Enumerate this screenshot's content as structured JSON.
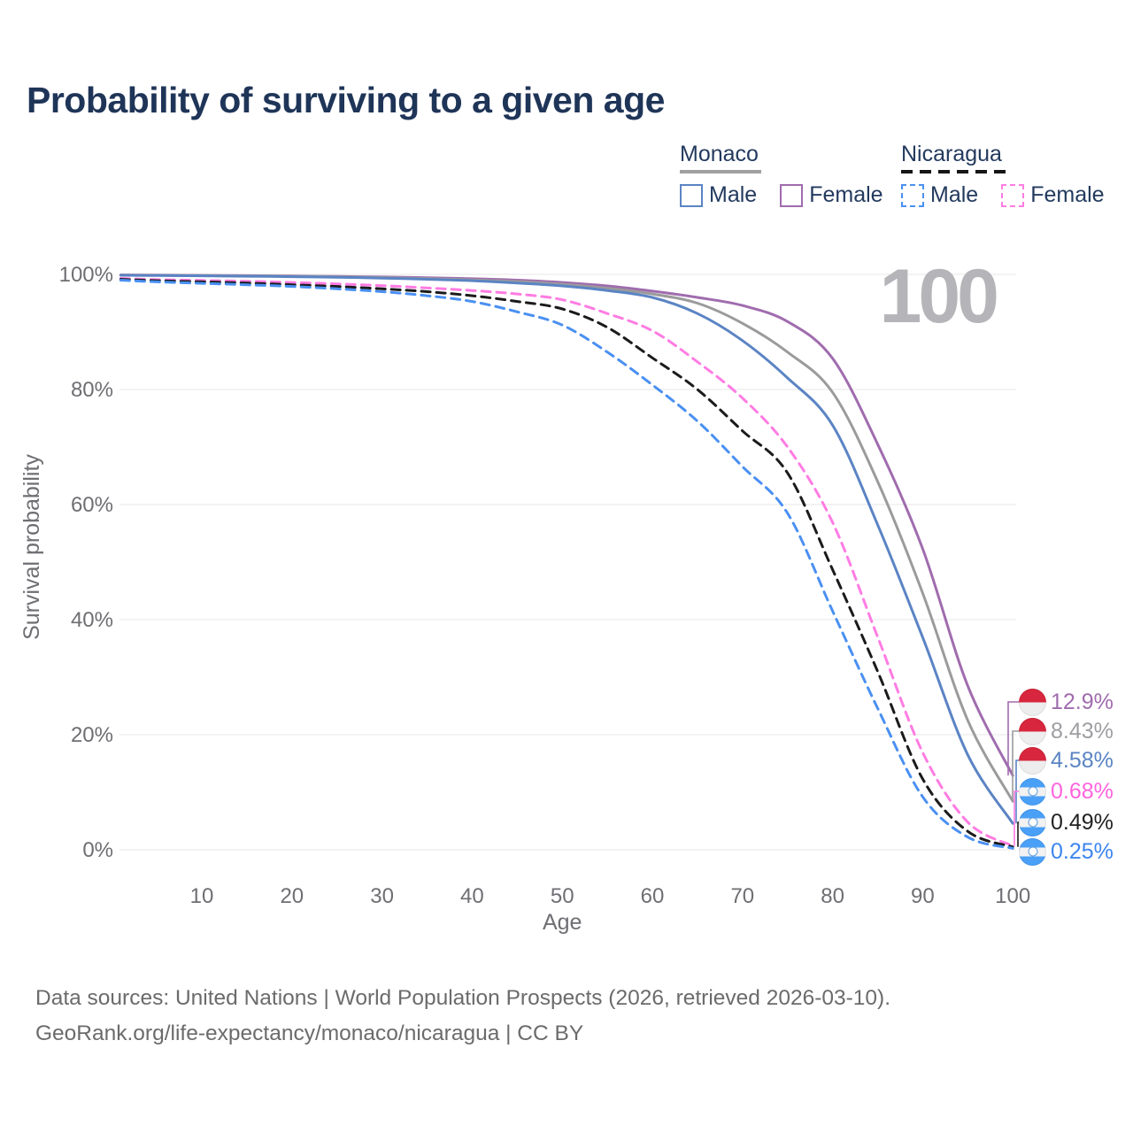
{
  "header": {
    "title": "Probability of surviving to a given age"
  },
  "legend": {
    "groups": [
      {
        "country": "Monaco",
        "line_style": "solid",
        "underline_color": "#a0a0a0",
        "items": [
          {
            "label": "Male",
            "color": "#5b84c4"
          },
          {
            "label": "Female",
            "color": "#a06cae"
          }
        ]
      },
      {
        "country": "Nicaragua",
        "line_style": "dashed",
        "underline_color": "#151515",
        "items": [
          {
            "label": "Male",
            "color": "#4a90f2"
          },
          {
            "label": "Female",
            "color": "#ff7ce3"
          }
        ]
      }
    ]
  },
  "annotations": {
    "age_marker": "100"
  },
  "chart_data": {
    "type": "line",
    "title": "Probability of surviving to a given age",
    "xlabel": "Age",
    "ylabel": "Survival probability",
    "x_ticks": [
      10,
      20,
      30,
      40,
      50,
      60,
      70,
      80,
      90,
      100
    ],
    "y_ticks": [
      0,
      20,
      40,
      60,
      80,
      100
    ],
    "y_tick_suffix": "%",
    "xlim": [
      1,
      100
    ],
    "ylim": [
      0,
      100
    ],
    "grid": "horizontal",
    "legend_position": "top-right",
    "ages": [
      1,
      5,
      10,
      15,
      20,
      25,
      30,
      35,
      40,
      45,
      50,
      55,
      60,
      65,
      70,
      75,
      80,
      85,
      90,
      95,
      100
    ],
    "series": [
      {
        "name": "Monaco Female",
        "country": "Monaco",
        "sex": "Female",
        "color": "#a06cae",
        "dash": false,
        "end_label": "12.9%",
        "values": [
          99.9,
          99.87,
          99.83,
          99.78,
          99.72,
          99.64,
          99.55,
          99.42,
          99.25,
          99.0,
          98.6,
          98.0,
          97.1,
          96.0,
          94.6,
          91.8,
          85.4,
          70.5,
          52.3,
          28.5,
          12.9
        ]
      },
      {
        "name": "Monaco Both sexes",
        "country": "Monaco",
        "sex": "Both",
        "color": "#9b9b9b",
        "dash": false,
        "end_label": "8.43%",
        "values": [
          99.88,
          99.84,
          99.8,
          99.74,
          99.67,
          99.58,
          99.45,
          99.28,
          99.05,
          98.75,
          98.3,
          97.6,
          96.6,
          95.0,
          91.5,
          86.5,
          79.5,
          64.0,
          44.6,
          22.5,
          8.43
        ]
      },
      {
        "name": "Monaco Male",
        "country": "Monaco",
        "sex": "Male",
        "color": "#5b84c4",
        "dash": false,
        "end_label": "4.58%",
        "values": [
          99.85,
          99.8,
          99.75,
          99.68,
          99.6,
          99.5,
          99.35,
          99.15,
          98.9,
          98.5,
          98.0,
          97.2,
          96.0,
          93.2,
          88.5,
          82.0,
          73.8,
          56.5,
          36.9,
          16.5,
          4.58
        ]
      },
      {
        "name": "Nicaragua Female",
        "country": "Nicaragua",
        "sex": "Female",
        "color": "#ff7ce3",
        "dash": true,
        "end_label": "0.68%",
        "values": [
          99.3,
          99.1,
          98.95,
          98.8,
          98.6,
          98.35,
          98.05,
          97.65,
          97.2,
          96.6,
          95.6,
          93.2,
          90.2,
          84.8,
          78.5,
          70.0,
          56.9,
          37.0,
          16.9,
          4.8,
          0.68
        ]
      },
      {
        "name": "Nicaragua Both sexes",
        "country": "Nicaragua",
        "sex": "Both",
        "color": "#1b1b1b",
        "dash": true,
        "end_label": "0.49%",
        "values": [
          99.15,
          98.9,
          98.7,
          98.5,
          98.2,
          97.9,
          97.5,
          97.0,
          96.3,
          95.3,
          94.0,
          90.8,
          85.5,
          80.0,
          72.8,
          65.5,
          48.7,
          31.0,
          12.3,
          3.2,
          0.49
        ]
      },
      {
        "name": "Nicaragua Male",
        "country": "Nicaragua",
        "sex": "Male",
        "color": "#4a90f2",
        "dash": true,
        "end_label": "0.25%",
        "values": [
          99.0,
          98.7,
          98.45,
          98.2,
          97.9,
          97.5,
          97.0,
          96.3,
          95.3,
          93.5,
          91.2,
          86.5,
          80.8,
          74.5,
          66.6,
          58.5,
          41.5,
          24.6,
          9.2,
          2.2,
          0.25
        ]
      }
    ]
  },
  "end_labels": [
    {
      "flag": "monaco",
      "value": "12.9%",
      "color": "#a06cae"
    },
    {
      "flag": "monaco",
      "value": "8.43%",
      "color": "#9e9ea2"
    },
    {
      "flag": "monaco",
      "value": "4.58%",
      "color": "#5b84c4"
    },
    {
      "flag": "nicaragua",
      "value": "0.68%",
      "color": "#ff63de"
    },
    {
      "flag": "nicaragua",
      "value": "0.49%",
      "color": "#222222"
    },
    {
      "flag": "nicaragua",
      "value": "0.25%",
      "color": "#3d85f0"
    }
  ],
  "footer": {
    "line1": "Data sources: United Nations | World Population Prospects (2026, retrieved 2026-03-10).",
    "line2": "GeoRank.org/life-expectancy/monaco/nicaragua | CC BY"
  }
}
